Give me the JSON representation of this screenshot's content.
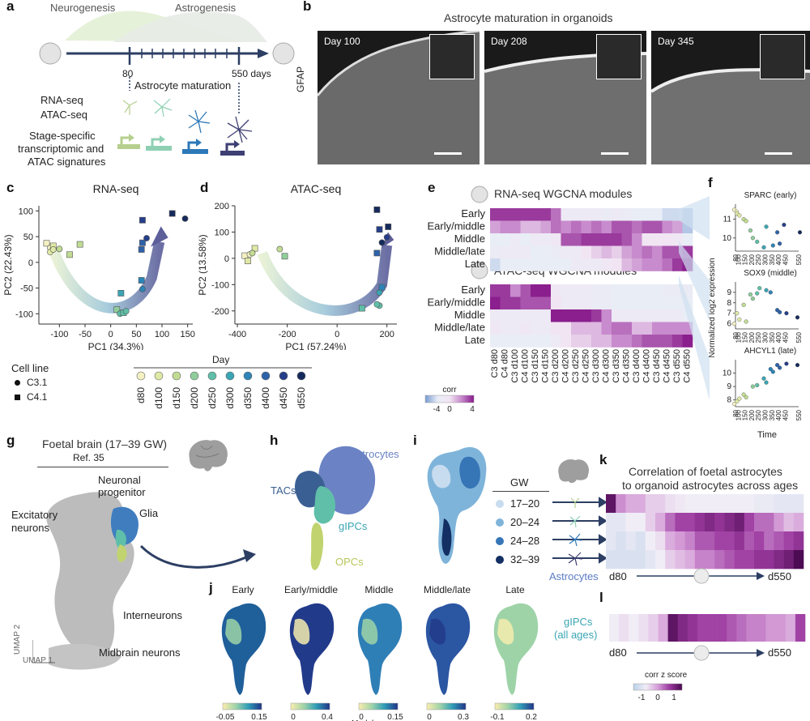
{
  "panels": {
    "a": "a",
    "b": "b",
    "c": "c",
    "d": "d",
    "e": "e",
    "f": "f",
    "g": "g",
    "h": "h",
    "i": "i",
    "j": "j",
    "k": "k",
    "l": "l"
  },
  "a": {
    "neurogenesis": "Neurogenesis",
    "astrogenesis": "Astrogenesis",
    "t80": "80",
    "t550": "550 days",
    "maturation": "Astrocyte maturation",
    "rnaseq": "RNA-seq",
    "atacseq": "ATAC-seq",
    "signatures1": "Stage-specific",
    "signatures2": "transcriptomic and",
    "signatures3": "ATAC signatures",
    "colors": [
      "#b6cf8e",
      "#8fd0b3",
      "#2d78b8",
      "#3e3f73"
    ]
  },
  "b": {
    "title": "Astrocyte maturation in organoids",
    "ylabel": "GFAP",
    "days": [
      "Day 100",
      "Day 208",
      "Day 345"
    ]
  },
  "legend": {
    "cellline_title": "Cell line",
    "c31": "C3.1",
    "c41": "C4.1",
    "day_title": "Day",
    "days": [
      "d80",
      "d100",
      "d150",
      "d200",
      "d250",
      "d300",
      "d350",
      "d400",
      "d450",
      "d550"
    ],
    "day_colors": [
      "#f3f0c2",
      "#dfe9a6",
      "#c1dc92",
      "#8fcd9a",
      "#5fbfa8",
      "#3aa5b3",
      "#2c84b7",
      "#2e62a8",
      "#253e8a",
      "#152a5c"
    ]
  },
  "chart_data": [
    {
      "id": "c",
      "type": "scatter",
      "title": "RNA-seq",
      "xlabel": "PC1 (34.3%)",
      "ylabel": "PC2 (22.43%)",
      "xlim": [
        -140,
        160
      ],
      "ylim": [
        -120,
        110
      ],
      "xticks": [
        "-100",
        "-50",
        "0",
        "50",
        "100",
        "150"
      ],
      "xtick_values": [
        -100,
        -50,
        0,
        50,
        100,
        150
      ],
      "yticks": [
        "100",
        "50",
        "0",
        "-50",
        "-100"
      ],
      "ytick_values": [
        100,
        50,
        0,
        -50,
        -100
      ],
      "points": [
        {
          "x": -125,
          "y": 37,
          "day": 0,
          "line": "C4.1"
        },
        {
          "x": -118,
          "y": 28,
          "day": 0,
          "line": "C3.1"
        },
        {
          "x": -112,
          "y": 32,
          "day": 1,
          "line": "C4.1"
        },
        {
          "x": -118,
          "y": 20,
          "day": 1,
          "line": "C3.1"
        },
        {
          "x": -112,
          "y": 25,
          "day": 1,
          "line": "C3.1"
        },
        {
          "x": -100,
          "y": 26,
          "day": 2,
          "line": "C3.1"
        },
        {
          "x": -80,
          "y": 15,
          "day": 2,
          "line": "C4.1"
        },
        {
          "x": -60,
          "y": 35,
          "day": 2,
          "line": "C4.1"
        },
        {
          "x": 12,
          "y": -92,
          "day": 3,
          "line": "C4.1"
        },
        {
          "x": 18,
          "y": -100,
          "day": 4,
          "line": "C3.1"
        },
        {
          "x": 25,
          "y": -98,
          "day": 4,
          "line": "C4.1"
        },
        {
          "x": 30,
          "y": -95,
          "day": 4,
          "line": "C3.1"
        },
        {
          "x": 20,
          "y": -60,
          "day": 5,
          "line": "C4.1"
        },
        {
          "x": 60,
          "y": -35,
          "day": 6,
          "line": "C4.1"
        },
        {
          "x": 62,
          "y": -52,
          "day": 6,
          "line": "C3.1"
        },
        {
          "x": 62,
          "y": 38,
          "day": 7,
          "line": "C4.1"
        },
        {
          "x": 60,
          "y": 25,
          "day": 7,
          "line": "C4.1"
        },
        {
          "x": 70,
          "y": 47,
          "day": 8,
          "line": "C3.1"
        },
        {
          "x": 62,
          "y": 82,
          "day": 8,
          "line": "C4.1"
        },
        {
          "x": 120,
          "y": 95,
          "day": 9,
          "line": "C4.1"
        },
        {
          "x": 145,
          "y": 85,
          "day": 9,
          "line": "C3.1"
        }
      ]
    },
    {
      "id": "d",
      "type": "scatter",
      "title": "ATAC-seq",
      "xlabel": "PC1 (57.24%)",
      "ylabel": "PC2 (13.58%)",
      "xlim": [
        -410,
        240
      ],
      "ylim": [
        -250,
        200
      ],
      "xticks": [
        "-400",
        "-200",
        "0",
        "200"
      ],
      "xtick_values": [
        -400,
        -200,
        0,
        200
      ],
      "yticks": [
        "200",
        "100",
        "0",
        "-100",
        "-200"
      ],
      "ytick_values": [
        200,
        100,
        0,
        -100,
        -200
      ],
      "points": [
        {
          "x": -370,
          "y": 10,
          "day": 0,
          "line": "C4.1"
        },
        {
          "x": -350,
          "y": 15,
          "day": 0,
          "line": "C3.1"
        },
        {
          "x": -358,
          "y": -10,
          "day": 1,
          "line": "C4.1"
        },
        {
          "x": -330,
          "y": 38,
          "day": 1,
          "line": "C4.1"
        },
        {
          "x": -340,
          "y": 20,
          "day": 2,
          "line": "C3.1"
        },
        {
          "x": -230,
          "y": 35,
          "day": 2,
          "line": "C3.1"
        },
        {
          "x": -210,
          "y": 8,
          "day": 3,
          "line": "C4.1"
        },
        {
          "x": 100,
          "y": -190,
          "day": 4,
          "line": "C4.1"
        },
        {
          "x": 170,
          "y": -180,
          "day": 4,
          "line": "C3.1"
        },
        {
          "x": 160,
          "y": -175,
          "day": 4,
          "line": "C3.1"
        },
        {
          "x": 170,
          "y": -130,
          "day": 5,
          "line": "C3.1"
        },
        {
          "x": 180,
          "y": -110,
          "day": 6,
          "line": "C4.1"
        },
        {
          "x": 160,
          "y": 20,
          "day": 7,
          "line": "C4.1"
        },
        {
          "x": 170,
          "y": 110,
          "day": 8,
          "line": "C4.1"
        },
        {
          "x": 200,
          "y": 80,
          "day": 8,
          "line": "C3.1"
        },
        {
          "x": 180,
          "y": 60,
          "day": 9,
          "line": "C3.1"
        },
        {
          "x": 205,
          "y": 120,
          "day": 9,
          "line": "C4.1"
        },
        {
          "x": 160,
          "y": 185,
          "day": 9,
          "line": "C4.1"
        }
      ]
    },
    {
      "id": "e-rna",
      "type": "heatmap",
      "title": "RNA-seq WGCNA modules",
      "rows": [
        "Early",
        "Early/middle",
        "Middle",
        "Middle/late",
        "Late"
      ],
      "values": [
        [
          3.5,
          3.5,
          3.5,
          3.5,
          3.5,
          3.5,
          2.5,
          -1,
          -1,
          -1,
          -1,
          -1.5,
          -1,
          -1.5,
          -2,
          -2,
          -2,
          -2.5,
          -2.5,
          -3
        ],
        [
          1.5,
          2,
          2,
          1,
          1,
          1.5,
          2.5,
          2,
          2.5,
          2,
          2.5,
          2,
          3,
          3,
          2.5,
          3,
          3,
          2,
          1.5,
          -3
        ],
        [
          -2,
          -2,
          -1,
          -2,
          -1,
          -1,
          -0.5,
          3,
          3,
          3.5,
          3.5,
          3.5,
          3.5,
          3,
          2,
          0,
          0,
          0,
          -0.5,
          -2
        ],
        [
          -1.5,
          -1,
          -1,
          -1,
          -2,
          -2,
          -1.5,
          -1,
          -1,
          0,
          0.5,
          1,
          0.5,
          1.5,
          2,
          2.5,
          2,
          3,
          3,
          3.5
        ],
        [
          -2.5,
          -2,
          -2,
          -2,
          -2,
          -2,
          -2,
          -2,
          -1,
          -1,
          -1,
          -0.5,
          0,
          1,
          1.5,
          2,
          2,
          2.5,
          3.5,
          4
        ]
      ]
    },
    {
      "id": "e-atac",
      "type": "heatmap",
      "title": "ATAC-seq WGCNA modules",
      "rows": [
        "Early",
        "Early/middle",
        "Middle",
        "Middle/late",
        "Late"
      ],
      "columns": [
        "C3 d80",
        "C4 d80",
        "C3 d100",
        "C4 d100",
        "C3 d150",
        "C4 d150",
        "C3 d200",
        "C4 d200",
        "C3 d250",
        "C4 d250",
        "C3 d300",
        "C4 d300",
        "C3 d350",
        "C4 d350",
        "C3 d400",
        "C4 d400",
        "C3 d450",
        "C4 d450",
        "C3 d550",
        "C4 d550"
      ],
      "values": [
        [
          3.5,
          3.5,
          2,
          3,
          4,
          4,
          -0.5,
          -1,
          -1,
          -1,
          -1.5,
          -1.5,
          -2,
          -2,
          -2,
          -2,
          -2,
          -1.5,
          -1.5,
          -1.5
        ],
        [
          4,
          3.5,
          3.5,
          3,
          3,
          3,
          0,
          -1,
          -1,
          -1,
          -1.5,
          -1.5,
          -2,
          -2,
          -2,
          -2,
          -2,
          -2,
          -2,
          -2
        ],
        [
          -1,
          -1,
          -1,
          -1,
          -1,
          -1,
          4,
          4,
          4,
          4,
          3.5,
          2,
          -1,
          -1,
          -1,
          -1,
          -1,
          -1,
          -1,
          -2
        ],
        [
          -0.5,
          -1,
          -1,
          -0.5,
          -1,
          -1,
          0,
          0,
          1,
          1,
          1,
          2,
          2.5,
          2.5,
          1,
          1,
          2,
          2,
          2,
          2
        ],
        [
          -2,
          -2,
          -2,
          -2,
          -2,
          -2,
          -1,
          0,
          0.5,
          0.5,
          1,
          1,
          2,
          2,
          2.5,
          3,
          3,
          3,
          3.5,
          4
        ]
      ],
      "colorbar": {
        "title": "corr",
        "ticks": [
          "-4",
          "0",
          "4"
        ],
        "range": [
          -4,
          4
        ]
      }
    },
    {
      "id": "f",
      "type": "scatter",
      "ylabel": "Normalized log2 expression",
      "xlabel": "Time",
      "xticks": [
        "80",
        "100",
        "150",
        "200",
        "250",
        "300",
        "350",
        "400",
        "450",
        "550"
      ],
      "series": [
        {
          "name": "SPARC (early)",
          "ylim": [
            9.3,
            11.8
          ],
          "yticks": [
            "11",
            "10"
          ],
          "ytick_values": [
            11,
            10
          ],
          "x": [
            80,
            80,
            100,
            100,
            150,
            150,
            200,
            200,
            250,
            300,
            300,
            350,
            400,
            400,
            450,
            550
          ],
          "y": [
            11.5,
            11.4,
            11.3,
            11.2,
            11.0,
            10.9,
            10.4,
            10.0,
            9.8,
            10.6,
            9.5,
            9.6,
            10.3,
            9.7,
            10.7,
            10.3
          ]
        },
        {
          "name": "SOX9 (middle)",
          "ylim": [
            5.5,
            10
          ],
          "yticks": [
            "9",
            "8",
            "7",
            "6"
          ],
          "ytick_values": [
            9,
            8,
            7,
            6
          ],
          "x": [
            80,
            100,
            100,
            150,
            150,
            200,
            200,
            250,
            250,
            300,
            350,
            400,
            400,
            450,
            550
          ],
          "y": [
            6.0,
            6.4,
            7.0,
            6.2,
            7.8,
            8.4,
            8.8,
            9.4,
            8.9,
            9.2,
            9.0,
            7.1,
            7.3,
            7.0,
            6.6
          ]
        },
        {
          "name": "AHCYL1 (late)",
          "ylim": [
            7.5,
            11
          ],
          "yticks": [
            "10",
            "9",
            "8"
          ],
          "ytick_values": [
            10,
            9,
            8
          ],
          "x": [
            80,
            100,
            100,
            150,
            150,
            200,
            250,
            300,
            300,
            350,
            350,
            400,
            400,
            450,
            550
          ],
          "y": [
            7.7,
            8.1,
            7.9,
            8.2,
            8.4,
            9.0,
            9.1,
            9.3,
            9.6,
            10.1,
            10.3,
            10.4,
            10.6,
            10.7,
            10.6
          ]
        }
      ]
    },
    {
      "id": "k",
      "type": "heatmap",
      "title": "Correlation of foetal astrocytes to organoid astrocytes across ages",
      "rows": [
        "17–20",
        "20–24",
        "24–28",
        "32–39"
      ],
      "values": [
        [
          2.0,
          0.5,
          0.2,
          0.2,
          -0.2,
          -0.2,
          -0.4,
          -0.5,
          -0.6,
          -0.6,
          -0.6,
          -0.6,
          -0.6,
          -0.6,
          -0.6,
          -0.7,
          -0.7,
          -0.8,
          -0.8,
          -0.8
        ],
        [
          -0.8,
          -0.8,
          -0.6,
          -0.6,
          -0.2,
          0.2,
          0.8,
          1.2,
          1.2,
          1.4,
          1.6,
          1.4,
          1.6,
          1.8,
          1.2,
          0.8,
          0.8,
          0.4,
          0.0,
          0.2
        ],
        [
          -0.8,
          -1.0,
          -0.8,
          -1.0,
          -0.6,
          -0.4,
          0.2,
          0.4,
          0.6,
          1.0,
          1.0,
          1.2,
          1.2,
          1.4,
          1.0,
          1.2,
          0.8,
          1.0,
          1.2,
          1.4
        ],
        [
          -1.0,
          -1.0,
          -1.0,
          -1.0,
          -0.8,
          -0.6,
          -0.2,
          0.0,
          0.2,
          0.6,
          0.6,
          0.8,
          1.0,
          1.2,
          1.2,
          1.4,
          1.4,
          1.6,
          1.8,
          2.2
        ]
      ]
    },
    {
      "id": "l",
      "type": "heatmap",
      "rows": [
        "gIPCs (all ages)"
      ],
      "values": [
        [
          -0.6,
          -0.4,
          -0.6,
          -0.4,
          -0.2,
          0.2,
          2.0,
          1.6,
          1.4,
          1.2,
          1.2,
          1.2,
          1.0,
          0.8,
          0.6,
          0.6,
          0.4,
          0.4,
          0.2,
          1.2
        ]
      ],
      "colorbar": {
        "title": "corr z score",
        "ticks": [
          "-1",
          "0",
          "1"
        ],
        "range": [
          -1.5,
          1.5
        ]
      }
    }
  ],
  "e": {
    "colorbar_title": "corr"
  },
  "g": {
    "title": "Foetal brain (17–39 GW)",
    "ref": "Ref. 35",
    "neuronal": "Neuronal",
    "progenitor": "progenitor",
    "glia": "Glia",
    "excitatory1": "Excitatory",
    "excitatory2": "neurons",
    "interneurons": "Interneurons",
    "midbrain": "Midbrain neurons",
    "umap1": "UMAP 1",
    "umap2": "UMAP 2"
  },
  "h": {
    "astrocytes": "Astrocytes",
    "tacs": "TACs",
    "gipcs": "gIPCs",
    "opcs": "OPCs"
  },
  "i": {
    "gw_title": "GW",
    "groups": [
      "17–20",
      "20–24",
      "24–28",
      "32–39"
    ],
    "colors": [
      "#c7dcef",
      "#7fb4da",
      "#3675b6",
      "#132f63"
    ]
  },
  "j": {
    "modules": [
      "Early",
      "Early/middle",
      "Middle",
      "Middle/late",
      "Late"
    ],
    "ticks": [
      [
        "-0.05",
        "0.15"
      ],
      [
        "0",
        "0.4"
      ],
      [
        "0",
        "0.15"
      ],
      [
        "0",
        "0.3"
      ],
      [
        "-0.1",
        "0.2"
      ]
    ],
    "xlabel": "Module score"
  },
  "k": {
    "title1": "Correlation of foetal astrocytes",
    "title2": "to organoid astrocytes across ages",
    "astro_label": "Astrocytes",
    "start": "d80",
    "end": "d550"
  },
  "l": {
    "label1": "gIPCs",
    "label2": "(all ages)",
    "start": "d80",
    "end": "d550",
    "colorbar_title": "corr z score"
  }
}
